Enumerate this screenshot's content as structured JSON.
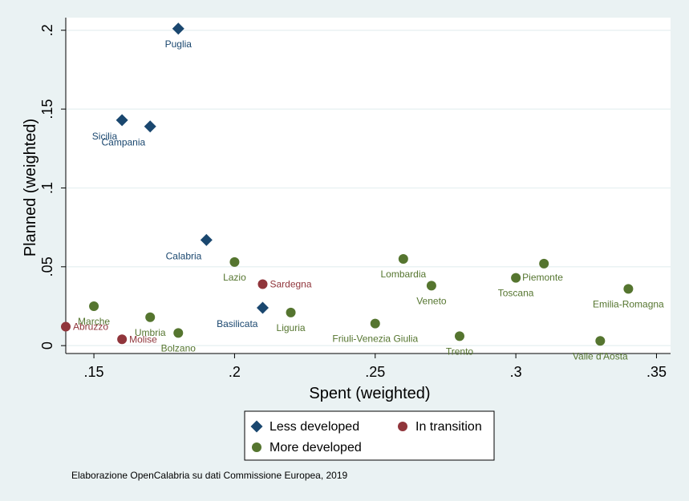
{
  "chart_data": {
    "type": "scatter",
    "xlabel": "Spent (weighted)",
    "ylabel": "Planned (weighted)",
    "xlim": [
      0.14,
      0.355
    ],
    "ylim": [
      -0.005,
      0.208
    ],
    "x_ticks": [
      0.15,
      0.2,
      0.25,
      0.3,
      0.35
    ],
    "x_tick_labels": [
      ".15",
      ".2",
      ".25",
      ".3",
      ".35"
    ],
    "y_ticks": [
      0,
      0.05,
      0.1,
      0.15,
      0.2
    ],
    "y_tick_labels": [
      "0",
      ".05",
      ".1",
      ".15",
      ".2"
    ],
    "grid": "horizontal",
    "legend_position": "bottom",
    "series": [
      {
        "name": "Less developed",
        "marker": "diamond",
        "color": "#1a476f",
        "points": [
          {
            "label": "Puglia",
            "x": 0.18,
            "y": 0.201,
            "pos": "below"
          },
          {
            "label": "Sicilia",
            "x": 0.16,
            "y": 0.143,
            "pos": "below-left"
          },
          {
            "label": "Campania",
            "x": 0.17,
            "y": 0.139,
            "pos": "below-left"
          },
          {
            "label": "Calabria",
            "x": 0.19,
            "y": 0.067,
            "pos": "below-left"
          },
          {
            "label": "Basilicata",
            "x": 0.21,
            "y": 0.024,
            "pos": "below-left"
          }
        ]
      },
      {
        "name": "In transition",
        "marker": "circle",
        "color": "#90353b",
        "points": [
          {
            "label": "Sardegna",
            "x": 0.21,
            "y": 0.039,
            "pos": "right"
          },
          {
            "label": "Abruzzo",
            "x": 0.14,
            "y": 0.012,
            "pos": "right"
          },
          {
            "label": "Molise",
            "x": 0.16,
            "y": 0.004,
            "pos": "right"
          }
        ]
      },
      {
        "name": "More developed",
        "marker": "circle",
        "color": "#55752f",
        "points": [
          {
            "label": "Lazio",
            "x": 0.2,
            "y": 0.053,
            "pos": "below"
          },
          {
            "label": "Marche",
            "x": 0.15,
            "y": 0.025,
            "pos": "below"
          },
          {
            "label": "Umbria",
            "x": 0.17,
            "y": 0.018,
            "pos": "below"
          },
          {
            "label": "Bolzano",
            "x": 0.18,
            "y": 0.008,
            "pos": "below"
          },
          {
            "label": "Liguria",
            "x": 0.22,
            "y": 0.021,
            "pos": "below"
          },
          {
            "label": "Friuli-Venezia Giulia",
            "x": 0.25,
            "y": 0.014,
            "pos": "below"
          },
          {
            "label": "Lombardia",
            "x": 0.26,
            "y": 0.055,
            "pos": "below"
          },
          {
            "label": "Veneto",
            "x": 0.27,
            "y": 0.038,
            "pos": "below"
          },
          {
            "label": "Trento",
            "x": 0.28,
            "y": 0.006,
            "pos": "below"
          },
          {
            "label": "Toscana",
            "x": 0.3,
            "y": 0.043,
            "pos": "below"
          },
          {
            "label": "Piemonte",
            "x": 0.31,
            "y": 0.052,
            "pos": "right-below"
          },
          {
            "label": "Valle d'Aosta",
            "x": 0.33,
            "y": 0.003,
            "pos": "below"
          },
          {
            "label": "Emilia-Romagna",
            "x": 0.34,
            "y": 0.036,
            "pos": "below"
          }
        ]
      }
    ],
    "note": "Elaborazione OpenCalabria su dati Commissione Europea, 2019"
  },
  "colors": {
    "background": "#eaf2f3",
    "plot_background": "#ffffff",
    "grid": "#eaf2f3"
  }
}
